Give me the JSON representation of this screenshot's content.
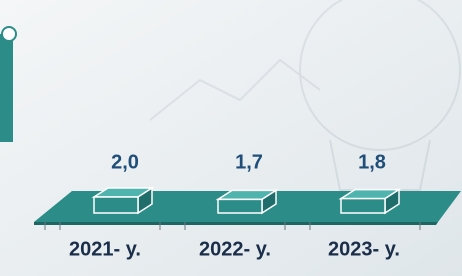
{
  "chart_data": {
    "type": "bar",
    "categories": [
      "2021- y.",
      "2022- y.",
      "2023- y."
    ],
    "values": [
      2.0,
      1.7,
      1.8
    ],
    "value_labels": [
      "2,0",
      "1,7",
      "1,8"
    ],
    "color": "#2b8c88"
  }
}
